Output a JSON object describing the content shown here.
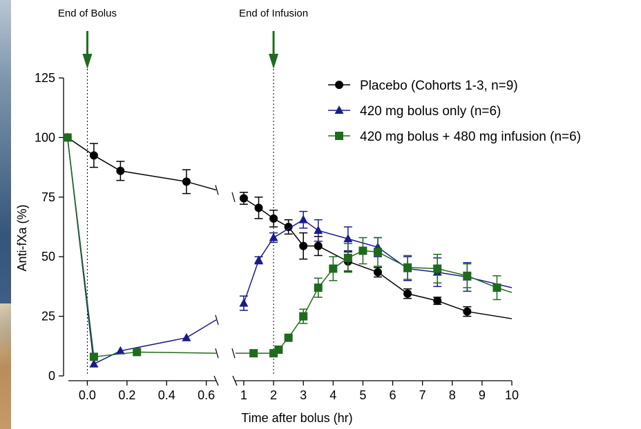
{
  "chart_data": {
    "type": "line",
    "xlabel": "Time after bolus (hr)",
    "ylabel": "Anti-fXa (%)",
    "ylim": [
      0,
      125
    ],
    "yticks": [
      "0",
      "25",
      "50",
      "75",
      "100",
      "125"
    ],
    "axis_break": true,
    "x_segments": [
      {
        "range": [
          -0.12,
          0.65
        ],
        "ticks": [
          "0.0",
          "0.2",
          "0.4",
          "0.6"
        ]
      },
      {
        "range": [
          0.7,
          10
        ],
        "ticks": [
          "1",
          "2",
          "3",
          "4",
          "5",
          "6",
          "7",
          "8",
          "9",
          "10"
        ]
      }
    ],
    "annotations": [
      {
        "text": "End of Bolus",
        "x": 0.0
      },
      {
        "text": "End of Infusion",
        "x": 2.0
      }
    ],
    "legend": {
      "position": "top-right"
    },
    "series": [
      {
        "name": "Placebo (Cohorts 1-3, n=9)",
        "color": "#000000",
        "marker": "circle",
        "points": [
          {
            "x": -0.1,
            "y": 100
          },
          {
            "x": 0.033,
            "y": 92.5,
            "err": 5
          },
          {
            "x": 0.167,
            "y": 86,
            "err": 4
          },
          {
            "x": 0.5,
            "y": 81.5,
            "err": 5
          },
          {
            "x": 1.0,
            "y": 74.5,
            "err": 2.5
          },
          {
            "x": 1.5,
            "y": 70.5,
            "err": 4.5
          },
          {
            "x": 2.0,
            "y": 66,
            "err": 3.5
          },
          {
            "x": 2.5,
            "y": 62.5,
            "err": 3
          },
          {
            "x": 3.0,
            "y": 54.5,
            "err": 5.5
          },
          {
            "x": 3.5,
            "y": 54.5,
            "err": 4
          },
          {
            "x": 4.5,
            "y": 48,
            "err": 4
          },
          {
            "x": 5.5,
            "y": 43.5,
            "err": 2
          },
          {
            "x": 6.5,
            "y": 34.5,
            "err": 2
          },
          {
            "x": 7.5,
            "y": 31.5,
            "err": 1.5
          },
          {
            "x": 8.5,
            "y": 27,
            "err": 2
          }
        ],
        "trail": [
          {
            "x": 0.65,
            "y": 78
          },
          {
            "x": 10,
            "y": 24
          }
        ]
      },
      {
        "name": "420 mg bolus only (n=6)",
        "color": "#1a1a8c",
        "marker": "triangle",
        "points": [
          {
            "x": -0.1,
            "y": 100
          },
          {
            "x": 0.033,
            "y": 5
          },
          {
            "x": 0.167,
            "y": 10.5
          },
          {
            "x": 0.5,
            "y": 16
          },
          {
            "x": 1.0,
            "y": 30.5,
            "err": 3
          },
          {
            "x": 1.5,
            "y": 48.5,
            "err": 1.5
          },
          {
            "x": 2.0,
            "y": 58,
            "err": 2
          },
          {
            "x": 3.0,
            "y": 65.5,
            "err": 3.5
          },
          {
            "x": 3.5,
            "y": 61,
            "err": 4.5
          },
          {
            "x": 4.5,
            "y": 57.5,
            "err": 5
          },
          {
            "x": 5.5,
            "y": 54,
            "err": 4
          },
          {
            "x": 6.5,
            "y": 45,
            "err": 5
          },
          {
            "x": 7.5,
            "y": 43.5,
            "err": 6
          },
          {
            "x": 8.5,
            "y": 41.5,
            "err": 6
          }
        ],
        "trail": [
          {
            "x": 0.65,
            "y": 23.5
          },
          {
            "x": 10,
            "y": 37
          }
        ]
      },
      {
        "name": "420 mg bolus + 480 mg infusion (n=6)",
        "color": "#1e6b1e",
        "marker": "square",
        "points": [
          {
            "x": -0.1,
            "y": 100
          },
          {
            "x": 0.033,
            "y": 8
          },
          {
            "x": 0.25,
            "y": 10
          },
          {
            "x": 1.33,
            "y": 9.5
          },
          {
            "x": 2.0,
            "y": 9.5
          },
          {
            "x": 2.17,
            "y": 11
          },
          {
            "x": 2.5,
            "y": 16
          },
          {
            "x": 3.0,
            "y": 25,
            "err": 3
          },
          {
            "x": 3.5,
            "y": 37,
            "err": 4
          },
          {
            "x": 4.0,
            "y": 45,
            "err": 5
          },
          {
            "x": 4.5,
            "y": 49.5,
            "err": 6
          },
          {
            "x": 5.0,
            "y": 52.5,
            "err": 5.5
          },
          {
            "x": 5.5,
            "y": 52,
            "err": 6
          },
          {
            "x": 6.5,
            "y": 45.5,
            "err": 5
          },
          {
            "x": 7.5,
            "y": 45,
            "err": 6
          },
          {
            "x": 8.5,
            "y": 42,
            "err": 5
          },
          {
            "x": 9.5,
            "y": 37,
            "err": 5
          }
        ],
        "trail": [
          {
            "x": 0.65,
            "y": 9.5
          },
          {
            "x": 10,
            "y": 35
          }
        ]
      }
    ]
  }
}
